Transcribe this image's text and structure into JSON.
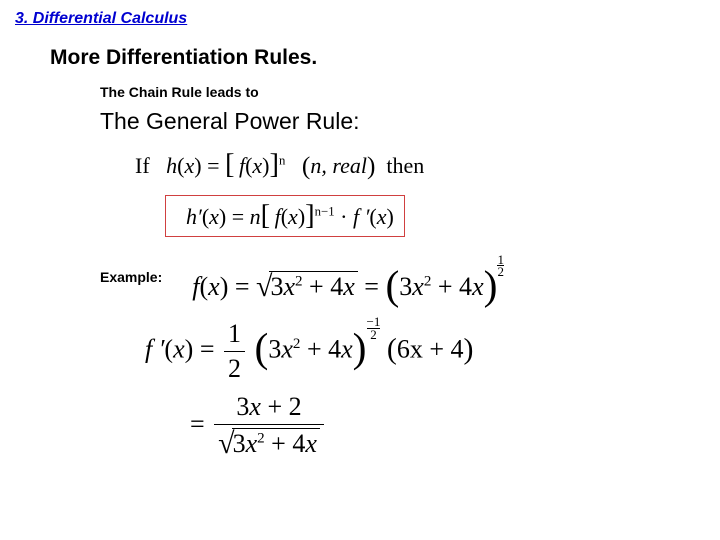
{
  "chapter": "3. Differential Calculus",
  "section": "More Differentiation Rules.",
  "leadIn": "The Chain Rule leads to",
  "ruleTitle": "The General Power Rule:",
  "premise": {
    "if": "If",
    "h": "h",
    "x": "x",
    "f": "f",
    "openB": "[",
    "closeB": "]",
    "n": "n",
    "nreal": "n, real",
    "then": "then"
  },
  "formula": {
    "hprime": "h′",
    "x": "x",
    "eq": "=",
    "n": "n",
    "f": "f",
    "nm1": "n−1",
    "dot": "·",
    "fprime": "f ′"
  },
  "example": {
    "label": "Example:",
    "f": "f",
    "x": "x",
    "eq": "=",
    "inner": "3x",
    "sq": "2",
    "plus4x": "+ 4x",
    "half_num": "1",
    "half_den": "2",
    "fprime": "f ′",
    "coef_num": "1",
    "coef_den": "2",
    "neg": "−",
    "nhalf_num": "1",
    "nhalf_den": "2",
    "d_inner": "6x + 4",
    "final_num1": "3x + 2"
  }
}
